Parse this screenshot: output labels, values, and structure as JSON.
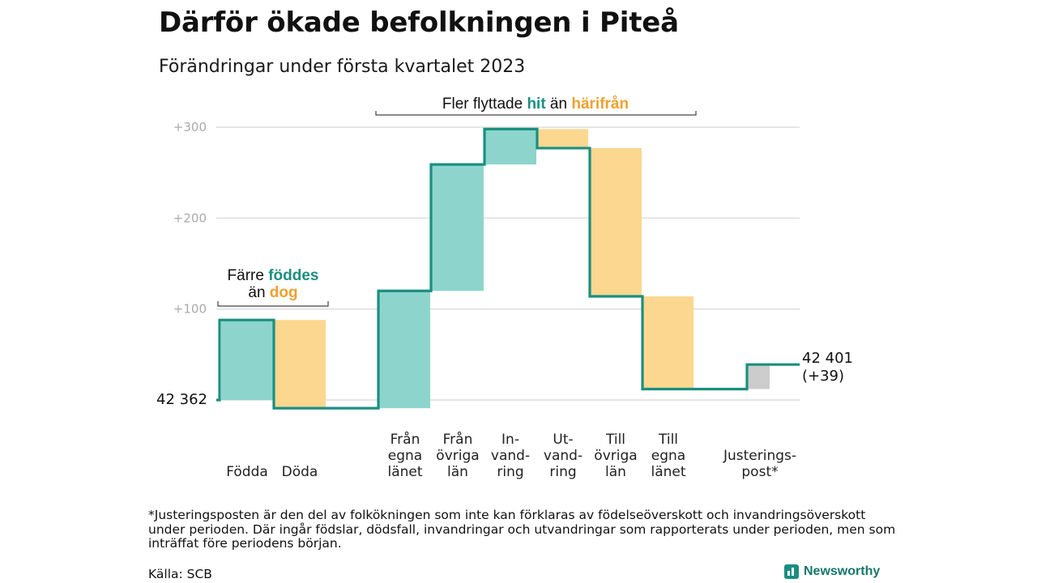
{
  "title": "Därför ökade befolkningen i Piteå",
  "subtitle": "Förändringar under första kvartalet 2023",
  "colors": {
    "positive": "#8dd5cc",
    "negative": "#fbd78f",
    "adjustment": "#cccccc",
    "line": "#1a8f80",
    "accent_teal": "#1a8f80",
    "accent_orange": "#f0a030",
    "grid": "#dddddd"
  },
  "chart_data": {
    "type": "waterfall",
    "start": {
      "label": "42 362",
      "value": 0
    },
    "end": {
      "label_line1": "42 401",
      "label_line2": "(+39)",
      "value": 39
    },
    "yticks": [
      {
        "value": 100,
        "label": "+100"
      },
      {
        "value": 200,
        "label": "+200"
      },
      {
        "value": 300,
        "label": "+300"
      }
    ],
    "ylim": [
      -15,
      310
    ],
    "steps": [
      {
        "label_lines": [
          "Födda"
        ],
        "from": 0,
        "to": 88,
        "kind": "positive"
      },
      {
        "label_lines": [
          "Döda"
        ],
        "from": 88,
        "to": -9,
        "kind": "negative"
      },
      {
        "label_lines": [
          "Från",
          "egna",
          "länet"
        ],
        "from": -9,
        "to": 120,
        "kind": "positive"
      },
      {
        "label_lines": [
          "Från",
          "övriga",
          "län"
        ],
        "from": 120,
        "to": 259,
        "kind": "positive"
      },
      {
        "label_lines": [
          "In-",
          "vand-",
          "ring"
        ],
        "from": 259,
        "to": 298,
        "kind": "positive"
      },
      {
        "label_lines": [
          "Ut-",
          "vand-",
          "ring"
        ],
        "from": 298,
        "to": 277,
        "kind": "negative"
      },
      {
        "label_lines": [
          "Till",
          "övriga",
          "län"
        ],
        "from": 277,
        "to": 114,
        "kind": "negative"
      },
      {
        "label_lines": [
          "Till",
          "egna",
          "länet"
        ],
        "from": 114,
        "to": 12,
        "kind": "negative"
      },
      {
        "label_lines": [
          "Justerings-",
          "post*"
        ],
        "from": 12,
        "to": 39,
        "kind": "adjustment"
      }
    ],
    "annotations": [
      {
        "segments": [
          {
            "text": "Färre ",
            "color": "#111111"
          },
          {
            "text": "föddes",
            "color": "#1a8f80",
            "bold": true
          }
        ],
        "segments2": [
          {
            "text": "än ",
            "color": "#111111"
          },
          {
            "text": "dog",
            "color": "#f0a030",
            "bold": true
          }
        ]
      },
      {
        "segments": [
          {
            "text": "Fler flyttade ",
            "color": "#111111"
          },
          {
            "text": "hit",
            "color": "#1a8f80",
            "bold": true
          },
          {
            "text": " än ",
            "color": "#111111"
          },
          {
            "text": "härifrån",
            "color": "#f0a030",
            "bold": true
          }
        ]
      }
    ]
  },
  "footnote": "*Justeringsposten är den del av folkökningen som inte kan förklaras av födelseöverskott och invandringsöverskott under perioden. Där ingår födslar, dödsfall, invandringar och utvandringar som rapporterats under perioden, men som inträffat före periodens början.",
  "source": "Källa: SCB",
  "brand": {
    "name": "Newsworthy",
    "icon": "bar-chart-icon"
  }
}
